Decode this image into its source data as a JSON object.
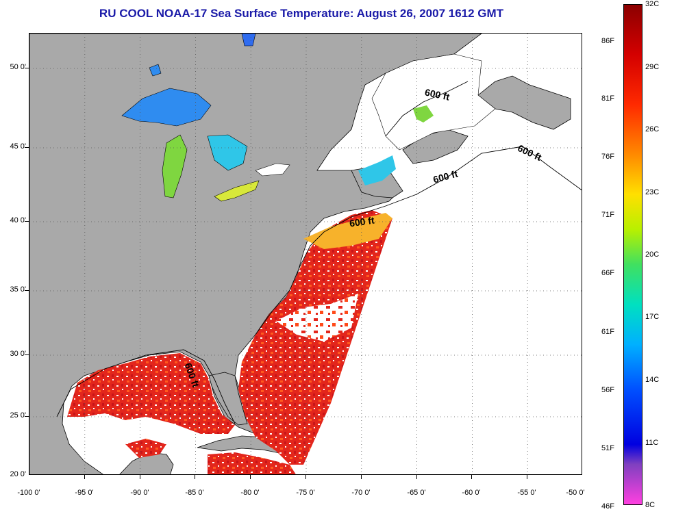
{
  "title": "RU COOL  NOAA-17  Sea Surface Temperature:  August 26, 2007 1612 GMT",
  "axes": {
    "lat_labels": [
      "50 0'",
      "45 0'",
      "40 0'",
      "35 0'",
      "30 0'",
      "25 0'",
      "20 0'"
    ],
    "lon_labels": [
      "-100 0'",
      "-95 0'",
      "-90 0'",
      "-85 0'",
      "-80 0'",
      "-75 0'",
      "-70 0'",
      "-65 0'",
      "-60 0'",
      "-55 0'",
      "-50 0'"
    ]
  },
  "colorbar": {
    "fahrenheit_labels": [
      "86F",
      "81F",
      "76F",
      "71F",
      "66F",
      "61F",
      "56F",
      "51F",
      "46F"
    ],
    "celsius_labels": [
      "32C",
      "29C",
      "26C",
      "23C",
      "20C",
      "17C",
      "14C",
      "11C",
      "8C"
    ]
  },
  "contour_labels": [
    "600 ft",
    "600 ft",
    "600 ft",
    "600 ft",
    "600 ft"
  ],
  "colors": {
    "land": "#a9a9a9",
    "title": "#1a1aa8",
    "warm": "#e8231a",
    "cool": "#3aa0ff"
  }
}
